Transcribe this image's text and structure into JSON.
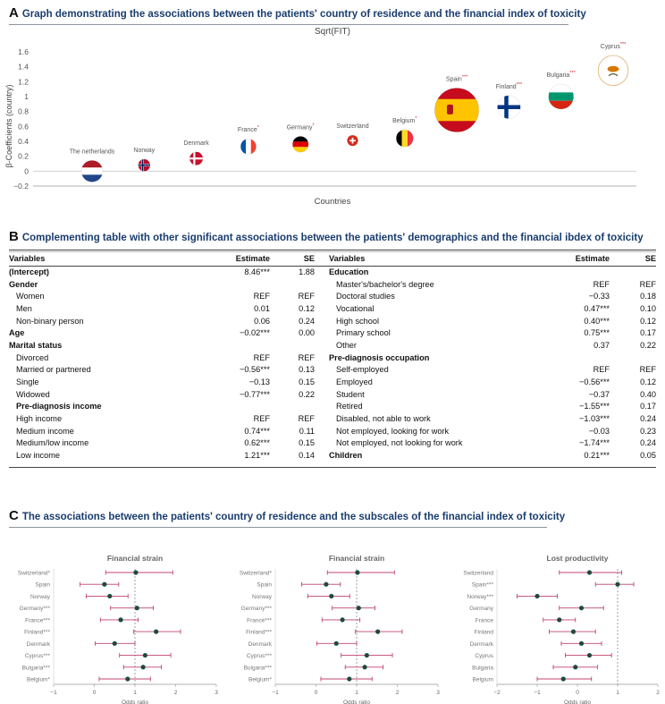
{
  "section_a": {
    "letter": "A",
    "title": "Graph demonstrating the associations between the patients' country of residence and the financial index of toxicity"
  },
  "section_b": {
    "letter": "B",
    "title": "Complementing table with other significant associations between the patients' demographics and the financial ibdex of toxicity",
    "headers": {
      "variables": "Variables",
      "estimate": "Estimate",
      "se": "SE"
    },
    "left_rows": [
      {
        "label": "(Intercept)",
        "estimate": "8.46***",
        "se": "1.88",
        "style": "bold"
      },
      {
        "label": "Gender",
        "estimate": "",
        "se": "",
        "style": "bold"
      },
      {
        "label": "Women",
        "estimate": "REF",
        "se": "REF",
        "style": "indent"
      },
      {
        "label": "Men",
        "estimate": "0.01",
        "se": "0.12",
        "style": "indent"
      },
      {
        "label": "Non-binary person",
        "estimate": "0.06",
        "se": "0.24",
        "style": "indent"
      },
      {
        "label": "Age",
        "estimate": "−0.02***",
        "se": "0.00",
        "style": "bold"
      },
      {
        "label": "Marital status",
        "estimate": "",
        "se": "",
        "style": "bold"
      },
      {
        "label": "Divorced",
        "estimate": "REF",
        "se": "REF",
        "style": "indent"
      },
      {
        "label": "Married or partnered",
        "estimate": "−0.56***",
        "se": "0.13",
        "style": "indent"
      },
      {
        "label": "Single",
        "estimate": "−0.13",
        "se": "0.15",
        "style": "indent"
      },
      {
        "label": "Widowed",
        "estimate": "−0.77***",
        "se": "0.22",
        "style": "indent"
      },
      {
        "label": "Pre-diagnosis income",
        "estimate": "",
        "se": "",
        "style": "bold-indent"
      },
      {
        "label": "High income",
        "estimate": "REF",
        "se": "REF",
        "style": "indent"
      },
      {
        "label": "Medium income",
        "estimate": "0.74***",
        "se": "0.11",
        "style": "indent"
      },
      {
        "label": "Medium/low income",
        "estimate": "0.62***",
        "se": "0.15",
        "style": "indent"
      },
      {
        "label": "Low income",
        "estimate": "1.21***",
        "se": "0.14",
        "style": "indent"
      }
    ],
    "right_rows": [
      {
        "label": "Education",
        "estimate": "",
        "se": "",
        "style": "bold"
      },
      {
        "label": "Master's/bachelor's degree",
        "estimate": "REF",
        "se": "REF",
        "style": "indent"
      },
      {
        "label": "Doctoral studies",
        "estimate": "−0.33",
        "se": "0.18",
        "style": "indent"
      },
      {
        "label": "Vocational",
        "estimate": "0.47***",
        "se": "0.10",
        "style": "indent"
      },
      {
        "label": "High school",
        "estimate": "0.40***",
        "se": "0.12",
        "style": "indent"
      },
      {
        "label": "Primary school",
        "estimate": "0.75***",
        "se": "0.17",
        "style": "indent"
      },
      {
        "label": "Other",
        "estimate": "0.37",
        "se": "0.22",
        "style": "indent"
      },
      {
        "label": "Pre-diagnosis occupation",
        "estimate": "",
        "se": "",
        "style": "bold"
      },
      {
        "label": "Self-employed",
        "estimate": "REF",
        "se": "REF",
        "style": "indent"
      },
      {
        "label": "Employed",
        "estimate": "−0.56***",
        "se": "0.12",
        "style": "indent"
      },
      {
        "label": "Student",
        "estimate": "−0.37",
        "se": "0.40",
        "style": "indent"
      },
      {
        "label": "Retired",
        "estimate": "−1.55***",
        "se": "0.17",
        "style": "indent"
      },
      {
        "label": "Disabled, not able to work",
        "estimate": "−1.03***",
        "se": "0.24",
        "style": "indent"
      },
      {
        "label": "Not employed, looking for work",
        "estimate": "−0.03",
        "se": "0.23",
        "style": "indent"
      },
      {
        "label": "Not employed, not looking for work",
        "estimate": "−1.74***",
        "se": "0.24",
        "style": "indent"
      },
      {
        "label": "Children",
        "estimate": "0.21***",
        "se": "0.05",
        "style": "bold"
      }
    ]
  },
  "section_c": {
    "letter": "C",
    "title": "The associations between the patients' country of residence and the subscales of the financial index of toxicity"
  },
  "colors": {
    "heading": "#1a3d6e",
    "star": "#d2232a",
    "dot": "#1d4a3e",
    "ci": "#c0446a",
    "refline": "#888888"
  },
  "chart_data": [
    {
      "type": "scatter",
      "title": "Sqrt(FIT)",
      "xlabel": "Countries",
      "ylabel": "β-Coefficients (country)",
      "ylim": [
        -0.2,
        1.6
      ],
      "yticks": [
        "−0.2",
        "0",
        "0.2",
        "0.4",
        "0.6",
        "0.8",
        "1",
        "1.2",
        "1.4",
        "1.6"
      ],
      "points": [
        {
          "country": "The netherlands",
          "stars": "",
          "value": 0.0,
          "flag": "netherlands"
        },
        {
          "country": "Norway",
          "stars": "",
          "value": 0.08,
          "flag": "norway"
        },
        {
          "country": "Denmark",
          "stars": "",
          "value": 0.17,
          "flag": "denmark"
        },
        {
          "country": "France",
          "stars": "*",
          "value": 0.33,
          "flag": "france"
        },
        {
          "country": "Germany",
          "stars": "*",
          "value": 0.36,
          "flag": "germany"
        },
        {
          "country": "Switzerland",
          "stars": "",
          "value": 0.41,
          "flag": "switzerland"
        },
        {
          "country": "Belgium",
          "stars": "*",
          "value": 0.44,
          "flag": "belgium"
        },
        {
          "country": "Spain",
          "stars": "***",
          "value": 0.82,
          "flag": "spain"
        },
        {
          "country": "Finland",
          "stars": "***",
          "value": 0.86,
          "flag": "finland"
        },
        {
          "country": "Bulgaria",
          "stars": "***",
          "value": 1.0,
          "flag": "bulgaria"
        },
        {
          "country": "Cyprus",
          "stars": "***",
          "value": 1.35,
          "flag": "cyprus"
        }
      ]
    },
    {
      "type": "forest",
      "title": "Financial strain",
      "xlabel": "Odds ratio",
      "xlim": [
        -1,
        3
      ],
      "xticks": [
        "−1",
        "0",
        "1",
        "2",
        "3"
      ],
      "refline": 1,
      "rows": [
        {
          "label": "Switzerland*",
          "est": 1.02,
          "lo": 0.28,
          "hi": 1.93
        },
        {
          "label": "Spain",
          "est": 0.25,
          "lo": -0.35,
          "hi": 0.6
        },
        {
          "label": "Norway",
          "est": 0.38,
          "lo": -0.2,
          "hi": 0.83
        },
        {
          "label": "Germany***",
          "est": 1.05,
          "lo": 0.4,
          "hi": 1.45
        },
        {
          "label": "France***",
          "est": 0.65,
          "lo": 0.15,
          "hi": 1.08
        },
        {
          "label": "Finland***",
          "est": 1.52,
          "lo": 0.97,
          "hi": 2.12
        },
        {
          "label": "Denmark",
          "est": 0.5,
          "lo": 0.02,
          "hi": 1.0
        },
        {
          "label": "Cyprus***",
          "est": 1.25,
          "lo": 0.62,
          "hi": 1.88
        },
        {
          "label": "Bulgaria***",
          "est": 1.2,
          "lo": 0.72,
          "hi": 1.65
        },
        {
          "label": "Belgium*",
          "est": 0.82,
          "lo": 0.12,
          "hi": 1.38
        }
      ]
    },
    {
      "type": "forest",
      "title": "Financial strain",
      "xlabel": "Odds ratio",
      "xlim": [
        -1,
        3
      ],
      "xticks": [
        "−1",
        "0",
        "1",
        "2",
        "3"
      ],
      "refline": 1,
      "rows": [
        {
          "label": "Switzerland*",
          "est": 1.02,
          "lo": 0.28,
          "hi": 1.93
        },
        {
          "label": "Spain",
          "est": 0.25,
          "lo": -0.35,
          "hi": 0.6
        },
        {
          "label": "Norway",
          "est": 0.38,
          "lo": -0.2,
          "hi": 0.83
        },
        {
          "label": "Germany***",
          "est": 1.05,
          "lo": 0.4,
          "hi": 1.45
        },
        {
          "label": "France***",
          "est": 0.65,
          "lo": 0.15,
          "hi": 1.08
        },
        {
          "label": "Finland***",
          "est": 1.52,
          "lo": 0.97,
          "hi": 2.12
        },
        {
          "label": "Denmark",
          "est": 0.5,
          "lo": 0.02,
          "hi": 1.0
        },
        {
          "label": "Cyprus***",
          "est": 1.25,
          "lo": 0.62,
          "hi": 1.88
        },
        {
          "label": "Bulgaria***",
          "est": 1.2,
          "lo": 0.72,
          "hi": 1.65
        },
        {
          "label": "Belgium*",
          "est": 0.82,
          "lo": 0.12,
          "hi": 1.38
        }
      ]
    },
    {
      "type": "forest",
      "title": "Lost productivity",
      "xlabel": "Odds ratio",
      "xlim": [
        -2,
        2
      ],
      "xticks": [
        "−2",
        "−1",
        "0",
        "1",
        "2"
      ],
      "refline": 1,
      "rows": [
        {
          "label": "Switzerland",
          "est": 0.3,
          "lo": -0.45,
          "hi": 1.1
        },
        {
          "label": "Spain***",
          "est": 1.0,
          "lo": 0.45,
          "hi": 1.4
        },
        {
          "label": "Norway***",
          "est": -1.0,
          "lo": -1.5,
          "hi": -0.5
        },
        {
          "label": "Germany",
          "est": 0.1,
          "lo": -0.45,
          "hi": 0.65
        },
        {
          "label": "France",
          "est": -0.45,
          "lo": -0.85,
          "hi": -0.05
        },
        {
          "label": "Finland",
          "est": -0.1,
          "lo": -0.7,
          "hi": 0.45
        },
        {
          "label": "Denmark",
          "est": 0.1,
          "lo": -0.4,
          "hi": 0.6
        },
        {
          "label": "Cyprus",
          "est": 0.3,
          "lo": -0.3,
          "hi": 0.85
        },
        {
          "label": "Bulgaria",
          "est": -0.05,
          "lo": -0.6,
          "hi": 0.5
        },
        {
          "label": "Belgium",
          "est": -0.35,
          "lo": -1.0,
          "hi": 0.35
        }
      ]
    }
  ]
}
